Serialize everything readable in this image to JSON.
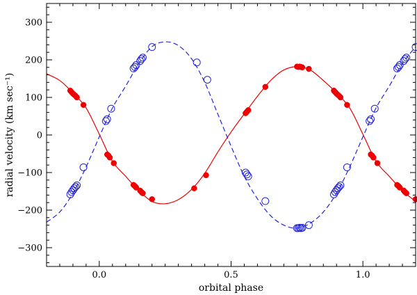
{
  "chart_data": {
    "type": "scatter",
    "title": "",
    "xlabel": "orbital phase",
    "ylabel": "radial velocity (km sec⁻¹)",
    "xlim": [
      -0.2,
      1.2
    ],
    "ylim": [
      -350,
      350
    ],
    "xticks": [
      0.0,
      0.5,
      1.0
    ],
    "xtick_labels": [
      "0.0",
      "0.5",
      "1.0"
    ],
    "yticks": [
      -300,
      -200,
      -100,
      0,
      100,
      200,
      300
    ],
    "ytick_labels": [
      "−300",
      "−200",
      "−100",
      "0",
      "100",
      "200",
      "300"
    ],
    "grid": false,
    "series": [
      {
        "marker": "filled-circle",
        "color": "#ee0000",
        "x": [
          -0.11,
          -0.105,
          -0.1,
          -0.095,
          -0.09,
          -0.085,
          -0.06,
          0.03,
          0.035,
          0.04,
          0.055,
          0.13,
          0.135,
          0.14,
          0.155,
          0.16,
          0.165,
          0.2,
          0.36,
          0.405,
          0.555,
          0.56,
          0.565,
          0.63,
          0.75,
          0.755,
          0.76,
          0.765,
          0.77,
          0.795,
          0.89,
          0.895,
          0.9,
          0.905,
          0.91,
          0.915,
          0.94,
          1.03,
          1.035,
          1.04,
          1.055,
          1.13,
          1.135,
          1.14,
          1.155,
          1.16,
          1.165,
          1.2
        ],
        "y": [
          118,
          114,
          110,
          107,
          104,
          100,
          80,
          -52,
          -55,
          -60,
          -75,
          -133,
          -136,
          -140,
          -148,
          -152,
          -155,
          -171,
          -142,
          -107,
          58,
          62,
          66,
          128,
          182,
          181,
          182,
          181,
          180,
          176,
          118,
          114,
          110,
          107,
          104,
          100,
          80,
          -52,
          -55,
          -60,
          -75,
          -133,
          -136,
          -140,
          -148,
          -152,
          -155,
          -171
        ]
      },
      {
        "marker": "open-circle",
        "color": "#2222dd",
        "x": [
          -0.11,
          -0.105,
          -0.1,
          -0.095,
          -0.09,
          -0.085,
          -0.06,
          0.025,
          0.03,
          0.045,
          0.13,
          0.135,
          0.14,
          0.155,
          0.16,
          0.165,
          0.2,
          0.37,
          0.41,
          0.555,
          0.56,
          0.565,
          0.63,
          0.75,
          0.755,
          0.76,
          0.765,
          0.77,
          0.795,
          0.89,
          0.895,
          0.9,
          0.905,
          0.91,
          0.915,
          0.94,
          1.025,
          1.03,
          1.045,
          1.13,
          1.135,
          1.14,
          1.155,
          1.16,
          1.165,
          1.2
        ],
        "y": [
          -158,
          -152,
          -147,
          -142,
          -138,
          -134,
          -86,
          37,
          42,
          70,
          177,
          181,
          186,
          197,
          202,
          206,
          234,
          193,
          147,
          -100,
          -105,
          -110,
          -176,
          -248,
          -248,
          -247,
          -248,
          -247,
          -240,
          -158,
          -152,
          -147,
          -142,
          -138,
          -134,
          -86,
          37,
          42,
          70,
          177,
          181,
          186,
          197,
          202,
          206,
          234
        ]
      },
      {
        "marker": "line-solid",
        "color": "#ee0000",
        "x": [
          -0.2,
          -0.15,
          -0.1,
          -0.05,
          0.0,
          0.05,
          0.1,
          0.15,
          0.2,
          0.25,
          0.3,
          0.35,
          0.4,
          0.45,
          0.5,
          0.55,
          0.6,
          0.65,
          0.7,
          0.75,
          0.8,
          0.85,
          0.9,
          0.95,
          1.0,
          1.05,
          1.1,
          1.15,
          1.2
        ],
        "y": [
          163,
          145,
          112,
          72,
          2,
          -70,
          -110,
          -148,
          -177,
          -183,
          -172,
          -145,
          -102,
          -45,
          8,
          56,
          103,
          145,
          173,
          182,
          173,
          145,
          112,
          72,
          2,
          -70,
          -110,
          -148,
          -177
        ]
      },
      {
        "marker": "line-dashed",
        "color": "#2222dd",
        "x": [
          -0.2,
          -0.15,
          -0.1,
          -0.05,
          0.0,
          0.05,
          0.1,
          0.15,
          0.2,
          0.25,
          0.3,
          0.35,
          0.4,
          0.45,
          0.5,
          0.55,
          0.6,
          0.65,
          0.7,
          0.75,
          0.8,
          0.85,
          0.9,
          0.95,
          1.0,
          1.05,
          1.1,
          1.15,
          1.2
        ],
        "y": [
          -232,
          -205,
          -155,
          -85,
          -5,
          72,
          130,
          190,
          235,
          248,
          238,
          203,
          140,
          55,
          -30,
          -110,
          -170,
          -215,
          -240,
          -248,
          -235,
          -205,
          -155,
          -85,
          -5,
          72,
          130,
          190,
          235
        ]
      }
    ]
  }
}
